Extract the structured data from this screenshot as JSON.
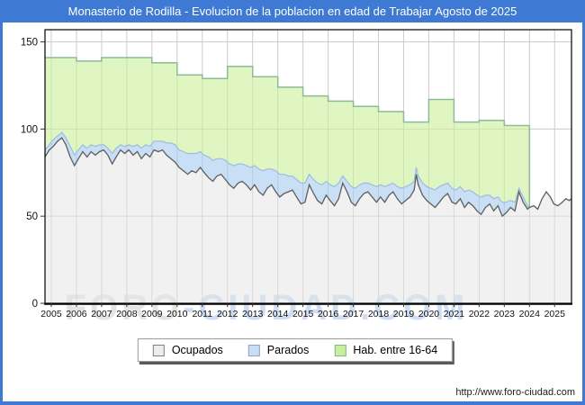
{
  "window": {
    "title": "Monasterio de Rodilla - Evolucion de la poblacion en edad de Trabajar Agosto de 2025",
    "title_bar_color": "#3e7ad3"
  },
  "footer": {
    "url": "http://www.foro-ciudad.com"
  },
  "watermark": {
    "part1": "FORO",
    "part2": "-CIUDAD.COM"
  },
  "legend": {
    "items": [
      {
        "label": "Ocupados",
        "swatch_fill": "#ededed",
        "swatch_border": "#808080"
      },
      {
        "label": "Parados",
        "swatch_fill": "#c9def4",
        "swatch_border": "#8aa6c4"
      },
      {
        "label": "Hab. entre 16-64",
        "swatch_fill": "#c9ee9d",
        "swatch_border": "#84b884"
      }
    ]
  },
  "chart_data": {
    "type": "area",
    "title": "Monasterio de Rodilla - Evolucion de la poblacion en edad de Trabajar Agosto de 2025",
    "x_domain": [
      2004.75,
      2025.67
    ],
    "y_domain": [
      0,
      157
    ],
    "x_ticks": [
      "2005",
      "2006",
      "2007",
      "2008",
      "2009",
      "2010",
      "2011",
      "2012",
      "2013",
      "2014",
      "2015",
      "2016",
      "2017",
      "2018",
      "2019",
      "2020",
      "2021",
      "2022",
      "2023",
      "2024",
      "2025"
    ],
    "y_ticks": [
      0,
      50,
      100,
      150
    ],
    "grid": true,
    "legend_position": "bottom",
    "colors": {
      "hab_fill": "rgba(204,240,153,0.6)",
      "hab_stroke": "#8cbb96",
      "parados_fill": "rgba(163,201,240,0.6)",
      "parados_stroke": "#9fbcdd",
      "ocupados_fill": "rgba(228,228,228,0.5)",
      "ocupados_stroke": "#5f5f5f",
      "gridline": "#cccccc",
      "axis": "#000000",
      "tick": "#333333"
    },
    "hab_entre_16_64": {
      "note": "annual step series, area ends 2024.0",
      "start": 2004.75,
      "end": 2024.0,
      "years": [
        2005,
        2006,
        2007,
        2008,
        2009,
        2010,
        2011,
        2012,
        2013,
        2014,
        2015,
        2016,
        2017,
        2018,
        2019,
        2020,
        2021,
        2022,
        2023
      ],
      "values": [
        141,
        139,
        141,
        141,
        138,
        131,
        129,
        136,
        130,
        124,
        119,
        116,
        113,
        110,
        104,
        117,
        104,
        105,
        102
      ]
    },
    "monthly_points_t_ocupados_parados": [
      [
        2004.75,
        84,
        4
      ],
      [
        2004.92,
        88,
        3
      ],
      [
        2005.08,
        90,
        4
      ],
      [
        2005.25,
        93,
        3
      ],
      [
        2005.42,
        95,
        3
      ],
      [
        2005.58,
        91,
        4
      ],
      [
        2005.75,
        84,
        6
      ],
      [
        2005.92,
        79,
        6
      ],
      [
        2006.08,
        83,
        5
      ],
      [
        2006.25,
        87,
        4
      ],
      [
        2006.42,
        84,
        5
      ],
      [
        2006.58,
        87,
        4
      ],
      [
        2006.75,
        85,
        5
      ],
      [
        2006.92,
        87,
        4
      ],
      [
        2007.08,
        88,
        3
      ],
      [
        2007.25,
        85,
        4
      ],
      [
        2007.42,
        80,
        6
      ],
      [
        2007.58,
        84,
        5
      ],
      [
        2007.75,
        88,
        3
      ],
      [
        2007.92,
        86,
        4
      ],
      [
        2008.08,
        88,
        3
      ],
      [
        2008.25,
        85,
        5
      ],
      [
        2008.42,
        87,
        4
      ],
      [
        2008.58,
        83,
        6
      ],
      [
        2008.75,
        86,
        5
      ],
      [
        2008.92,
        84,
        6
      ],
      [
        2009.08,
        88,
        5
      ],
      [
        2009.25,
        87,
        6
      ],
      [
        2009.42,
        88,
        5
      ],
      [
        2009.58,
        85,
        7
      ],
      [
        2009.75,
        83,
        9
      ],
      [
        2009.92,
        81,
        10
      ],
      [
        2010.08,
        78,
        10
      ],
      [
        2010.25,
        76,
        11
      ],
      [
        2010.42,
        74,
        12
      ],
      [
        2010.58,
        76,
        10
      ],
      [
        2010.75,
        75,
        11
      ],
      [
        2010.92,
        78,
        9
      ],
      [
        2011.08,
        75,
        10
      ],
      [
        2011.25,
        72,
        12
      ],
      [
        2011.42,
        70,
        12
      ],
      [
        2011.58,
        73,
        10
      ],
      [
        2011.75,
        74,
        9
      ],
      [
        2011.92,
        71,
        11
      ],
      [
        2012.08,
        68,
        12
      ],
      [
        2012.25,
        66,
        13
      ],
      [
        2012.42,
        69,
        11
      ],
      [
        2012.58,
        70,
        10
      ],
      [
        2012.75,
        68,
        11
      ],
      [
        2012.92,
        65,
        13
      ],
      [
        2013.08,
        68,
        11
      ],
      [
        2013.25,
        64,
        13
      ],
      [
        2013.42,
        62,
        14
      ],
      [
        2013.58,
        66,
        11
      ],
      [
        2013.75,
        68,
        9
      ],
      [
        2013.92,
        64,
        12
      ],
      [
        2014.08,
        61,
        13
      ],
      [
        2014.25,
        63,
        11
      ],
      [
        2014.42,
        64,
        9
      ],
      [
        2014.58,
        65,
        8
      ],
      [
        2014.75,
        61,
        10
      ],
      [
        2014.92,
        57,
        12
      ],
      [
        2015.08,
        58,
        11
      ],
      [
        2015.25,
        68,
        6
      ],
      [
        2015.42,
        63,
        8
      ],
      [
        2015.58,
        59,
        10
      ],
      [
        2015.75,
        57,
        11
      ],
      [
        2015.92,
        62,
        8
      ],
      [
        2016.08,
        59,
        9
      ],
      [
        2016.25,
        56,
        11
      ],
      [
        2016.42,
        60,
        9
      ],
      [
        2016.58,
        69,
        4
      ],
      [
        2016.75,
        64,
        6
      ],
      [
        2016.92,
        58,
        9
      ],
      [
        2017.08,
        56,
        10
      ],
      [
        2017.25,
        60,
        8
      ],
      [
        2017.42,
        63,
        6
      ],
      [
        2017.58,
        64,
        5
      ],
      [
        2017.75,
        61,
        7
      ],
      [
        2017.92,
        58,
        9
      ],
      [
        2018.08,
        61,
        7
      ],
      [
        2018.25,
        58,
        9
      ],
      [
        2018.42,
        62,
        6
      ],
      [
        2018.58,
        64,
        5
      ],
      [
        2018.75,
        60,
        7
      ],
      [
        2018.92,
        57,
        9
      ],
      [
        2019.08,
        59,
        8
      ],
      [
        2019.25,
        61,
        7
      ],
      [
        2019.42,
        65,
        5
      ],
      [
        2019.5,
        74,
        4
      ],
      [
        2019.58,
        68,
        5
      ],
      [
        2019.75,
        62,
        7
      ],
      [
        2019.92,
        59,
        8
      ],
      [
        2020.08,
        57,
        9
      ],
      [
        2020.25,
        55,
        10
      ],
      [
        2020.42,
        58,
        9
      ],
      [
        2020.58,
        61,
        7
      ],
      [
        2020.75,
        63,
        6
      ],
      [
        2020.92,
        58,
        8
      ],
      [
        2021.08,
        57,
        8
      ],
      [
        2021.25,
        60,
        7
      ],
      [
        2021.42,
        55,
        9
      ],
      [
        2021.58,
        58,
        7
      ],
      [
        2021.75,
        56,
        8
      ],
      [
        2021.92,
        53,
        9
      ],
      [
        2022.08,
        51,
        10
      ],
      [
        2022.25,
        55,
        7
      ],
      [
        2022.42,
        57,
        5
      ],
      [
        2022.58,
        53,
        7
      ],
      [
        2022.75,
        56,
        5
      ],
      [
        2022.92,
        50,
        8
      ],
      [
        2023.08,
        52,
        6
      ],
      [
        2023.25,
        55,
        4
      ],
      [
        2023.42,
        53,
        5
      ],
      [
        2023.58,
        64,
        2
      ],
      [
        2023.75,
        58,
        3
      ],
      [
        2023.92,
        54,
        2
      ],
      [
        2024.0,
        55,
        0
      ],
      [
        2024.17,
        56,
        null
      ],
      [
        2024.33,
        54,
        null
      ],
      [
        2024.5,
        60,
        null
      ],
      [
        2024.67,
        64,
        null
      ],
      [
        2024.83,
        61,
        null
      ],
      [
        2024.97,
        57,
        null
      ],
      [
        2025.13,
        56,
        null
      ],
      [
        2025.3,
        58,
        null
      ],
      [
        2025.45,
        60,
        null
      ],
      [
        2025.58,
        59,
        null
      ],
      [
        2025.67,
        60,
        null
      ]
    ]
  }
}
